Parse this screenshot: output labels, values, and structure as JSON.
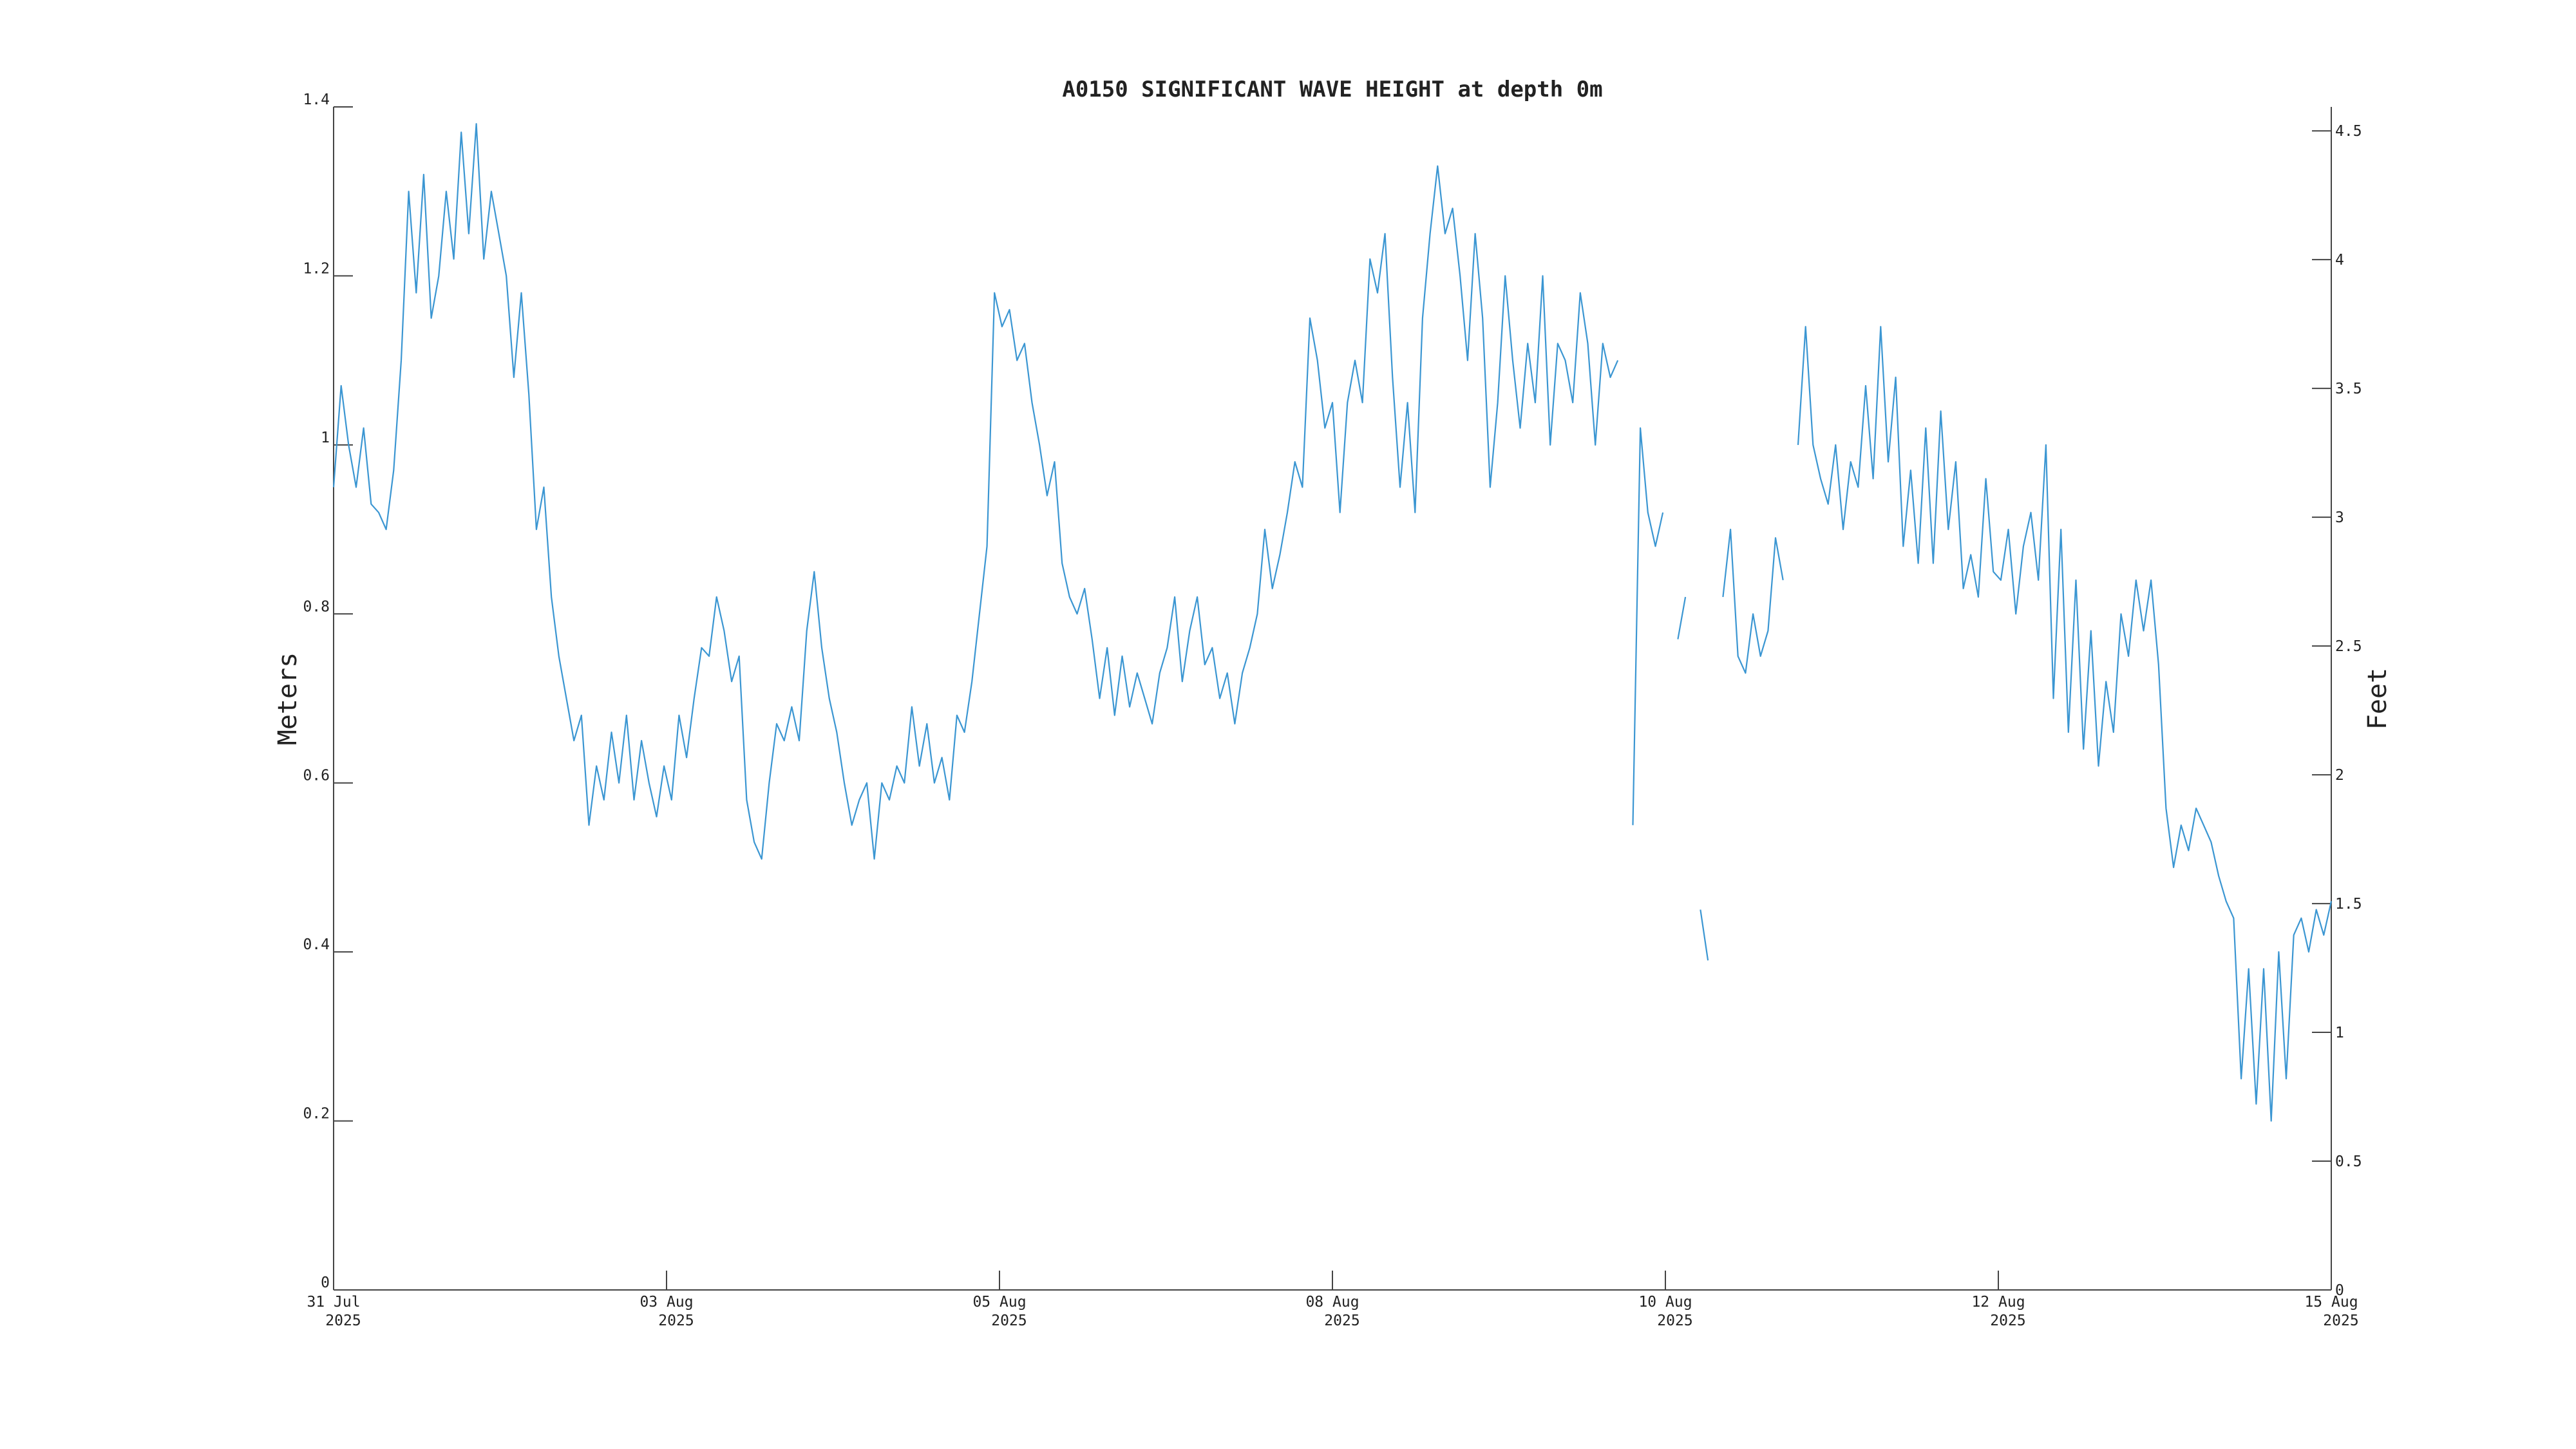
{
  "chart_data": {
    "type": "line",
    "title": "A0150 SIGNIFICANT WAVE HEIGHT at depth 0m",
    "ylabel": "Meters",
    "y2label": "Feet",
    "x_tick_labels": [
      [
        "31 Jul",
        "2025"
      ],
      [
        "03 Aug",
        "2025"
      ],
      [
        "05 Aug",
        "2025"
      ],
      [
        "08 Aug",
        "2025"
      ],
      [
        "10 Aug",
        "2025"
      ],
      [
        "12 Aug",
        "2025"
      ],
      [
        "15 Aug",
        "2025"
      ]
    ],
    "ylim": [
      0,
      1.4
    ],
    "yticks": [
      0,
      0.2,
      0.4,
      0.6,
      0.8,
      1,
      1.2,
      1.4
    ],
    "y2lim": [
      0,
      4.593
    ],
    "y2ticks": [
      0,
      0.5,
      1,
      1.5,
      2,
      2.5,
      3,
      3.5,
      4,
      4.5
    ],
    "series": [
      {
        "color": "#3b96d2",
        "values": [
          0.95,
          1.07,
          1.0,
          0.95,
          1.02,
          0.93,
          0.92,
          0.9,
          0.97,
          1.1,
          1.3,
          1.18,
          1.32,
          1.15,
          1.2,
          1.3,
          1.22,
          1.37,
          1.25,
          1.38,
          1.22,
          1.3,
          1.25,
          1.2,
          1.08,
          1.18,
          1.06,
          0.9,
          0.95,
          0.82,
          0.75,
          0.7,
          0.65,
          0.68,
          0.55,
          0.62,
          0.58,
          0.66,
          0.6,
          0.68,
          0.58,
          0.65,
          0.6,
          0.56,
          0.62,
          0.58,
          0.68,
          0.63,
          0.7,
          0.76,
          0.75,
          0.82,
          0.78,
          0.72,
          0.75,
          0.58,
          0.53,
          0.51,
          0.6,
          0.67,
          0.65,
          0.69,
          0.65,
          0.78,
          0.85,
          0.76,
          0.7,
          0.66,
          0.6,
          0.55,
          0.58,
          0.6,
          0.51,
          0.6,
          0.58,
          0.62,
          0.6,
          0.69,
          0.62,
          0.67,
          0.6,
          0.63,
          0.58,
          0.68,
          0.66,
          0.72,
          0.8,
          0.88,
          1.18,
          1.14,
          1.16,
          1.1,
          1.12,
          1.05,
          1.0,
          0.94,
          0.98,
          0.86,
          0.82,
          0.8,
          0.83,
          0.77,
          0.7,
          0.76,
          0.68,
          0.75,
          0.69,
          0.73,
          0.7,
          0.67,
          0.73,
          0.76,
          0.82,
          0.72,
          0.78,
          0.82,
          0.74,
          0.76,
          0.7,
          0.73,
          0.67,
          0.73,
          0.76,
          0.8,
          0.9,
          0.83,
          0.87,
          0.92,
          0.98,
          0.95,
          1.15,
          1.1,
          1.02,
          1.05,
          0.92,
          1.05,
          1.1,
          1.05,
          1.22,
          1.18,
          1.25,
          1.08,
          0.95,
          1.05,
          0.92,
          1.15,
          1.25,
          1.33,
          1.25,
          1.28,
          1.2,
          1.1,
          1.25,
          1.15,
          0.95,
          1.05,
          1.2,
          1.1,
          1.02,
          1.12,
          1.05,
          1.2,
          1.0,
          1.12,
          1.1,
          1.05,
          1.18,
          1.12,
          1.0,
          1.12,
          1.08,
          1.1,
          null,
          0.55,
          1.02,
          0.92,
          0.88,
          0.92,
          null,
          0.77,
          0.82,
          null,
          0.45,
          0.39,
          null,
          0.82,
          0.9,
          0.75,
          0.73,
          0.8,
          0.75,
          0.78,
          0.89,
          0.84,
          null,
          1.0,
          1.14,
          1.0,
          0.96,
          0.93,
          1.0,
          0.9,
          0.98,
          0.95,
          1.07,
          0.96,
          1.14,
          0.98,
          1.08,
          0.88,
          0.97,
          0.86,
          1.02,
          0.86,
          1.04,
          0.9,
          0.98,
          0.83,
          0.87,
          0.82,
          0.96,
          0.85,
          0.84,
          0.9,
          0.8,
          0.88,
          0.92,
          0.84,
          1.0,
          0.7,
          0.9,
          0.66,
          0.84,
          0.64,
          0.78,
          0.62,
          0.72,
          0.66,
          0.8,
          0.75,
          0.84,
          0.78,
          0.84,
          0.74,
          0.57,
          0.5,
          0.55,
          0.52,
          0.57,
          0.55,
          0.53,
          0.49,
          0.46,
          0.44,
          0.25,
          0.38,
          0.22,
          0.38,
          0.2,
          0.4,
          0.25,
          0.42,
          0.44,
          0.4,
          0.45,
          0.42,
          0.46
        ]
      }
    ]
  }
}
